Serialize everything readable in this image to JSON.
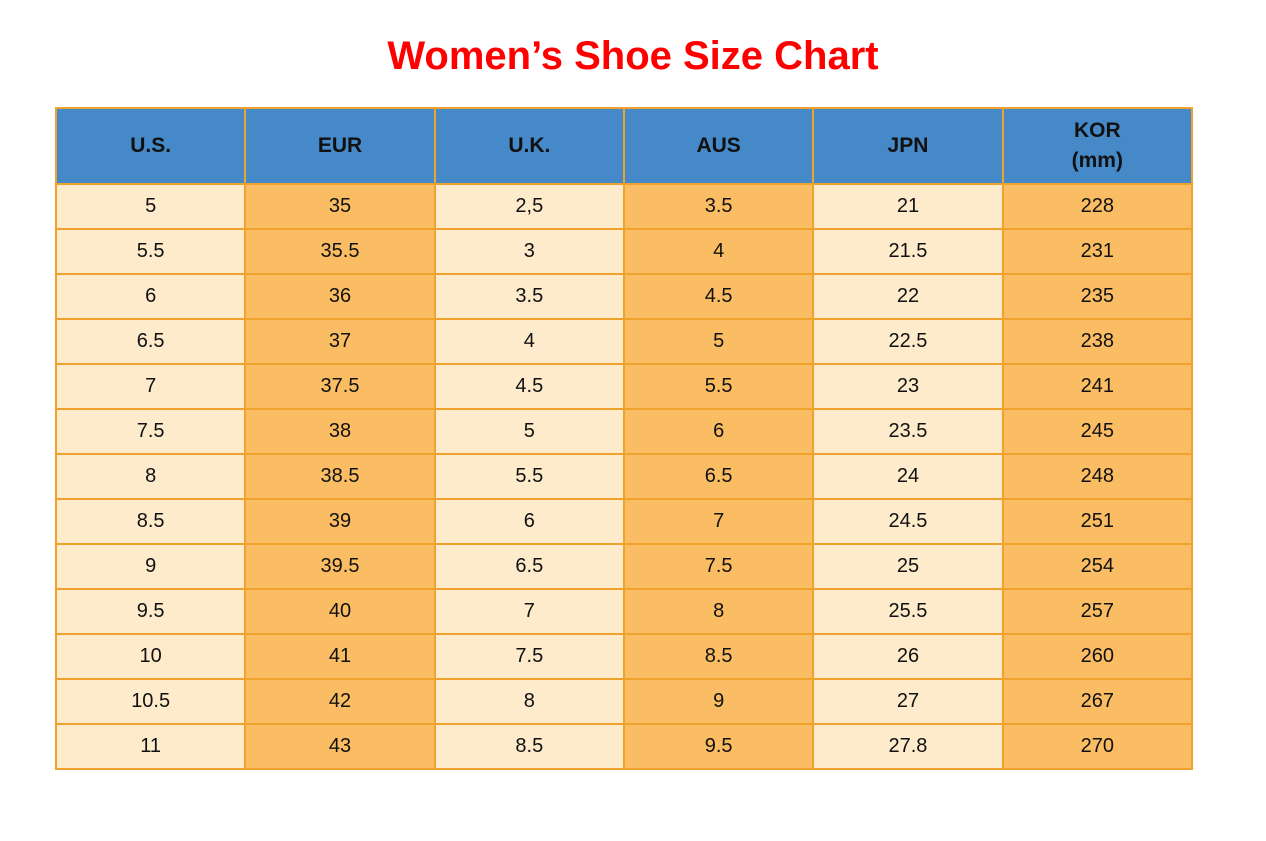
{
  "title": "Women’s Shoe Size Chart",
  "colors": {
    "title_red": "#fe0000",
    "header_blue": "#4589c8",
    "column_cream": "#fdebcb",
    "column_orange": "#fbbd63",
    "grid_border_orange": "#f0a32c",
    "text_black": "#111111"
  },
  "table": {
    "headers": [
      {
        "label": "U.S."
      },
      {
        "label": "EUR"
      },
      {
        "label": "U.K."
      },
      {
        "label": "AUS"
      },
      {
        "label": "JPN"
      },
      {
        "label": "KOR",
        "sub": "(mm)"
      }
    ]
  },
  "chart_data": {
    "type": "table",
    "title": "Women’s Shoe Size Chart",
    "columns": [
      "U.S.",
      "EUR",
      "U.K.",
      "AUS",
      "JPN",
      "KOR (mm)"
    ],
    "rows": [
      [
        "5",
        "35",
        "2,5",
        "3.5",
        "21",
        "228"
      ],
      [
        "5.5",
        "35.5",
        "3",
        "4",
        "21.5",
        "231"
      ],
      [
        "6",
        "36",
        "3.5",
        "4.5",
        "22",
        "235"
      ],
      [
        "6.5",
        "37",
        "4",
        "5",
        "22.5",
        "238"
      ],
      [
        "7",
        "37.5",
        "4.5",
        "5.5",
        "23",
        "241"
      ],
      [
        "7.5",
        "38",
        "5",
        "6",
        "23.5",
        "245"
      ],
      [
        "8",
        "38.5",
        "5.5",
        "6.5",
        "24",
        "248"
      ],
      [
        "8.5",
        "39",
        "6",
        "7",
        "24.5",
        "251"
      ],
      [
        "9",
        "39.5",
        "6.5",
        "7.5",
        "25",
        "254"
      ],
      [
        "9.5",
        "40",
        "7",
        "8",
        "25.5",
        "257"
      ],
      [
        "10",
        "41",
        "7.5",
        "8.5",
        "26",
        "260"
      ],
      [
        "10.5",
        "42",
        "8",
        "9",
        "27",
        "267"
      ],
      [
        "11",
        "43",
        "8.5",
        "9.5",
        "27.8",
        "270"
      ]
    ]
  }
}
